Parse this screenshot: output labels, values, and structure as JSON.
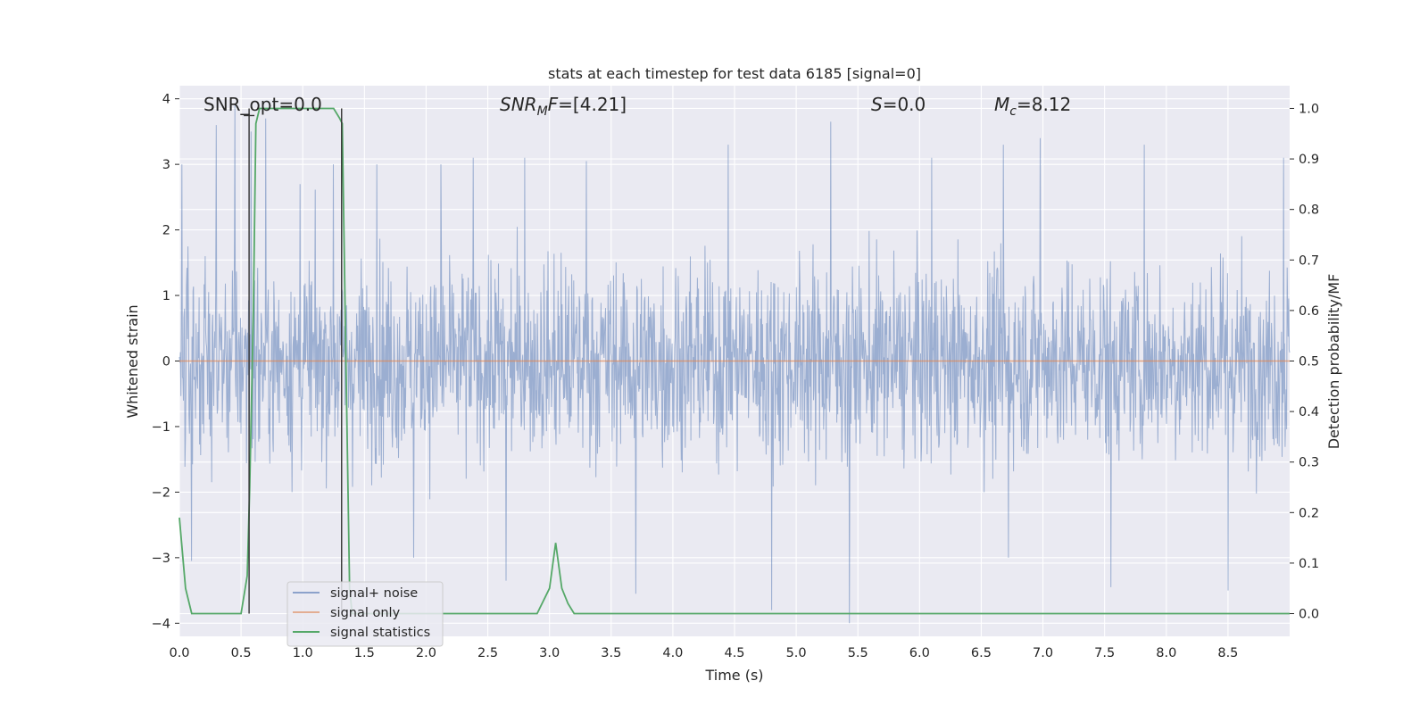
{
  "chart_data": {
    "type": "line",
    "title": "stats at each timestep for test data 6185 [signal=0]",
    "xlabel": "Time (s)",
    "ylabel": "Whitened strain",
    "y2label": "Detection probability/MF",
    "xlim": [
      0.0,
      9.0
    ],
    "ylim": [
      -4.2,
      4.2
    ],
    "y2lim": [
      -0.045,
      1.045
    ],
    "xticks": [
      "0.0",
      "0.5",
      "1.0",
      "1.5",
      "2.0",
      "2.5",
      "3.0",
      "3.5",
      "4.0",
      "4.5",
      "5.0",
      "5.5",
      "6.0",
      "6.5",
      "7.0",
      "7.5",
      "8.0",
      "8.5"
    ],
    "yticks": [
      "−4",
      "−3",
      "−2",
      "−1",
      "0",
      "1",
      "2",
      "3",
      "4"
    ],
    "y2ticks": [
      "0.0",
      "0.1",
      "0.2",
      "0.3",
      "0.4",
      "0.5",
      "0.6",
      "0.7",
      "0.8",
      "0.9",
      "1.0"
    ],
    "grid": true,
    "legend_position": "lower-left",
    "annotations": {
      "snr_opt": "SNR_opt=0.0",
      "snr_mf_base": "SNR",
      "snr_mf_sub": "M",
      "snr_mf_rest": "F=[4.21]",
      "s_var": "S",
      "s_rest": "=0.0",
      "mc_var": "M",
      "mc_sub": "c",
      "mc_rest": "=8.12"
    },
    "series": [
      {
        "name": "signal+ noise",
        "color": "#4c72b0",
        "axis": "left",
        "note": "dense whitened noise trace, values mostly within ±1.8, peaks near ±4",
        "peaks": [
          [
            0.02,
            3.0
          ],
          [
            0.3,
            3.6
          ],
          [
            0.45,
            3.9
          ],
          [
            0.58,
            3.5
          ],
          [
            0.7,
            3.7
          ],
          [
            0.98,
            2.7
          ],
          [
            1.25,
            3.0
          ],
          [
            1.6,
            3.0
          ],
          [
            2.12,
            3.0
          ],
          [
            2.38,
            3.1
          ],
          [
            2.8,
            3.1
          ],
          [
            3.3,
            3.05
          ],
          [
            4.45,
            3.3
          ],
          [
            5.28,
            3.65
          ],
          [
            6.1,
            3.1
          ],
          [
            6.68,
            3.3
          ],
          [
            6.98,
            3.4
          ],
          [
            7.82,
            3.3
          ],
          [
            8.95,
            3.1
          ],
          [
            0.1,
            -3.05
          ],
          [
            1.9,
            -3.0
          ],
          [
            2.65,
            -3.35
          ],
          [
            3.7,
            -3.55
          ],
          [
            4.8,
            -3.8
          ],
          [
            5.43,
            -4.0
          ],
          [
            6.72,
            -3.0
          ],
          [
            7.55,
            -3.45
          ],
          [
            8.5,
            -3.5
          ]
        ]
      },
      {
        "name": "signal only",
        "color": "#dd8452",
        "axis": "left",
        "x": [
          0.0,
          9.0
        ],
        "y": [
          0.0,
          0.0
        ]
      },
      {
        "name": "signal statistics",
        "color": "#55a868",
        "axis": "right",
        "x": [
          0.0,
          0.05,
          0.1,
          0.2,
          0.3,
          0.4,
          0.45,
          0.5,
          0.55,
          0.57,
          0.6,
          0.62,
          0.65,
          0.7,
          1.0,
          1.2,
          1.25,
          1.3,
          1.32,
          1.35,
          1.38,
          1.4,
          1.5,
          2.0,
          2.5,
          2.85,
          2.9,
          3.0,
          3.05,
          3.1,
          3.15,
          3.2,
          3.5,
          4.0,
          5.0,
          6.0,
          7.0,
          8.0,
          9.0
        ],
        "y": [
          0.19,
          0.05,
          0.0,
          0.0,
          0.0,
          0.0,
          0.0,
          0.0,
          0.075,
          0.25,
          0.6,
          0.97,
          1.0,
          1.0,
          1.0,
          1.0,
          1.0,
          0.98,
          0.97,
          0.5,
          0.05,
          0.0,
          0.0,
          0.0,
          0.0,
          0.0,
          0.0,
          0.05,
          0.14,
          0.05,
          0.02,
          0.0,
          0.0,
          0.0,
          0.0,
          0.0,
          0.0,
          0.0,
          0.0
        ]
      }
    ],
    "markers": [
      {
        "x": 0.565,
        "ymin": 0.0,
        "ymax": 1.0,
        "axis": "right",
        "color": "#333333"
      },
      {
        "x": 1.315,
        "ymin": 0.0,
        "ymax": 1.0,
        "axis": "right",
        "color": "#333333"
      }
    ]
  }
}
